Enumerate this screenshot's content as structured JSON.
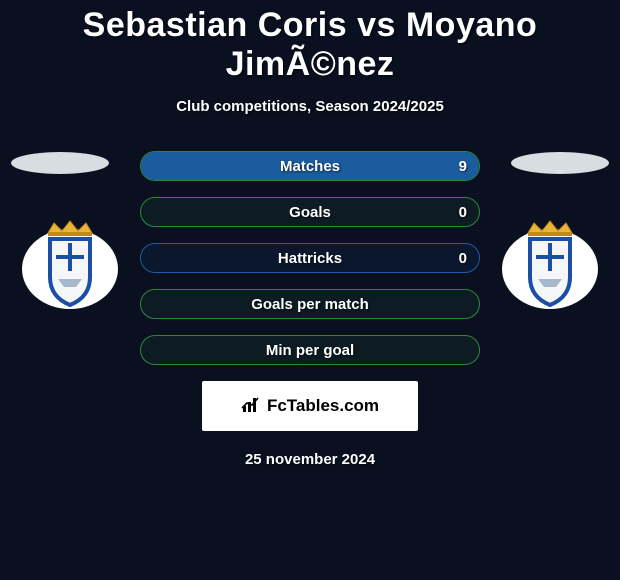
{
  "title": "Sebastian Coris vs Moyano JimÃ©nez",
  "subtitle": "Club competitions, Season 2024/2025",
  "date_text": "25 november 2024",
  "watermark_text": "FcTables.com",
  "bar_styles": {
    "border_color_a": "#2a8a3a",
    "border_color_b": "#205aa8",
    "background_a": "rgba(42,138,58,0.10)",
    "background_b": "rgba(32,90,168,0.10)",
    "fill_color_right": "#1a5c9e",
    "label_color": "#ffffff"
  },
  "stats": [
    {
      "label": "Matches",
      "value_right": "9",
      "fill_right_pct": 100,
      "variant": "a"
    },
    {
      "label": "Goals",
      "value_right": "0",
      "fill_right_pct": 0,
      "variant": "a"
    },
    {
      "label": "Hattricks",
      "value_right": "0",
      "fill_right_pct": 0,
      "variant": "b"
    },
    {
      "label": "Goals per match",
      "value_right": "",
      "fill_right_pct": 0,
      "variant": "a"
    },
    {
      "label": "Min per goal",
      "value_right": "",
      "fill_right_pct": 0,
      "variant": "a"
    }
  ],
  "ellipse_color": "#d8dde2",
  "club_logo": {
    "crown_color": "#e9b43a",
    "shield_fill": "#f4f6f8",
    "shield_border": "#1a4fa3",
    "cross_color": "#1a4fa3",
    "circle_bg": "#ffffff"
  }
}
